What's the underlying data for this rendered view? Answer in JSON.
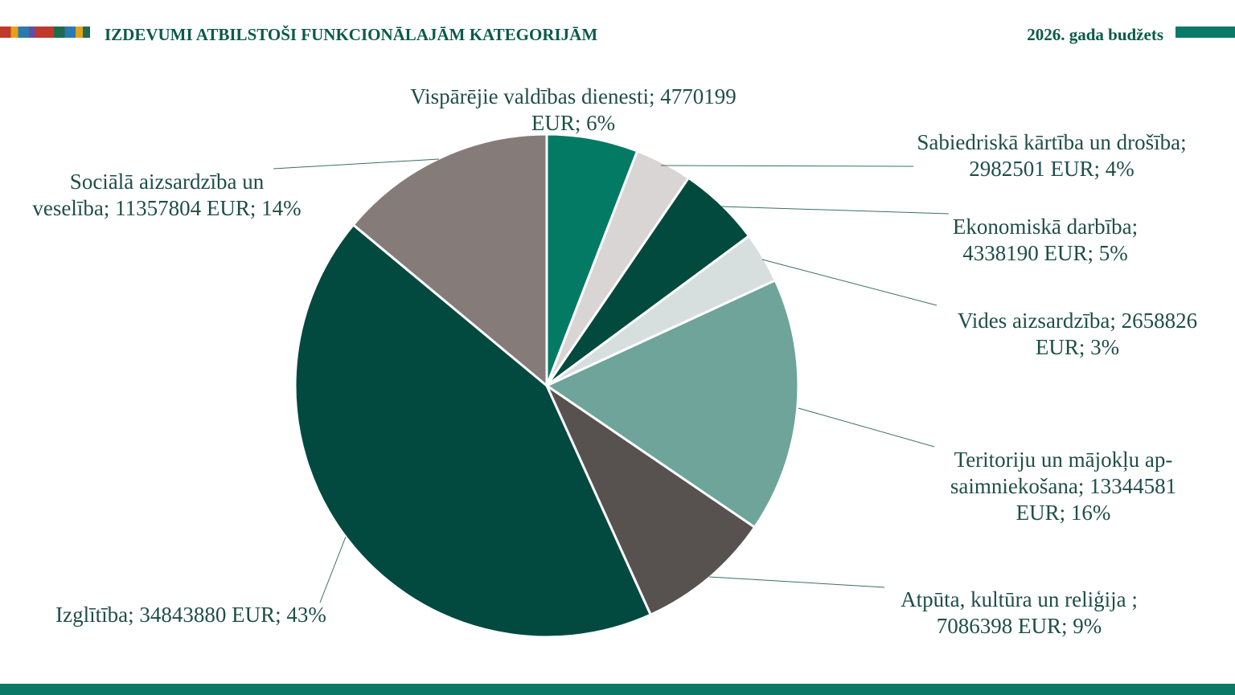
{
  "header": {
    "title": "IZDEVUMI ATBILSTOŠI FUNKCIONĀLAJĀM KATEGORIJĀM",
    "right": "2026. gada budžets"
  },
  "chart_data": {
    "type": "pie",
    "categories": [
      "Vispārējie valdības dienesti;",
      "Sabiedriskā kārtība un drošība;",
      "Ekonomiskā darbība;",
      "Vides aizsardzība;",
      "Teritoriju un mājokļu ap-saimniekošana;",
      "Atpūta, kultūra un reliģija ;",
      "Izglītība;",
      "Sociālā aizsardzība un veselība;"
    ],
    "values": [
      4770199,
      2982501,
      4338190,
      2658826,
      13344581,
      7086398,
      34843880,
      11357804
    ],
    "value_labels": [
      "4770199 EUR; 6%",
      "2982501 EUR; 4%",
      "4338190 EUR; 5%",
      "2658826 EUR; 3%",
      "13344581 EUR; 16%",
      "7086398 EUR; 9%",
      "34843880 EUR; 43%",
      "11357804 EUR; 14%"
    ],
    "colors": [
      "#037a64",
      "#d9d5d5",
      "#034a3e",
      "#d6dfde",
      "#6ea49a",
      "#575250",
      "#02493f",
      "#857c79"
    ]
  }
}
